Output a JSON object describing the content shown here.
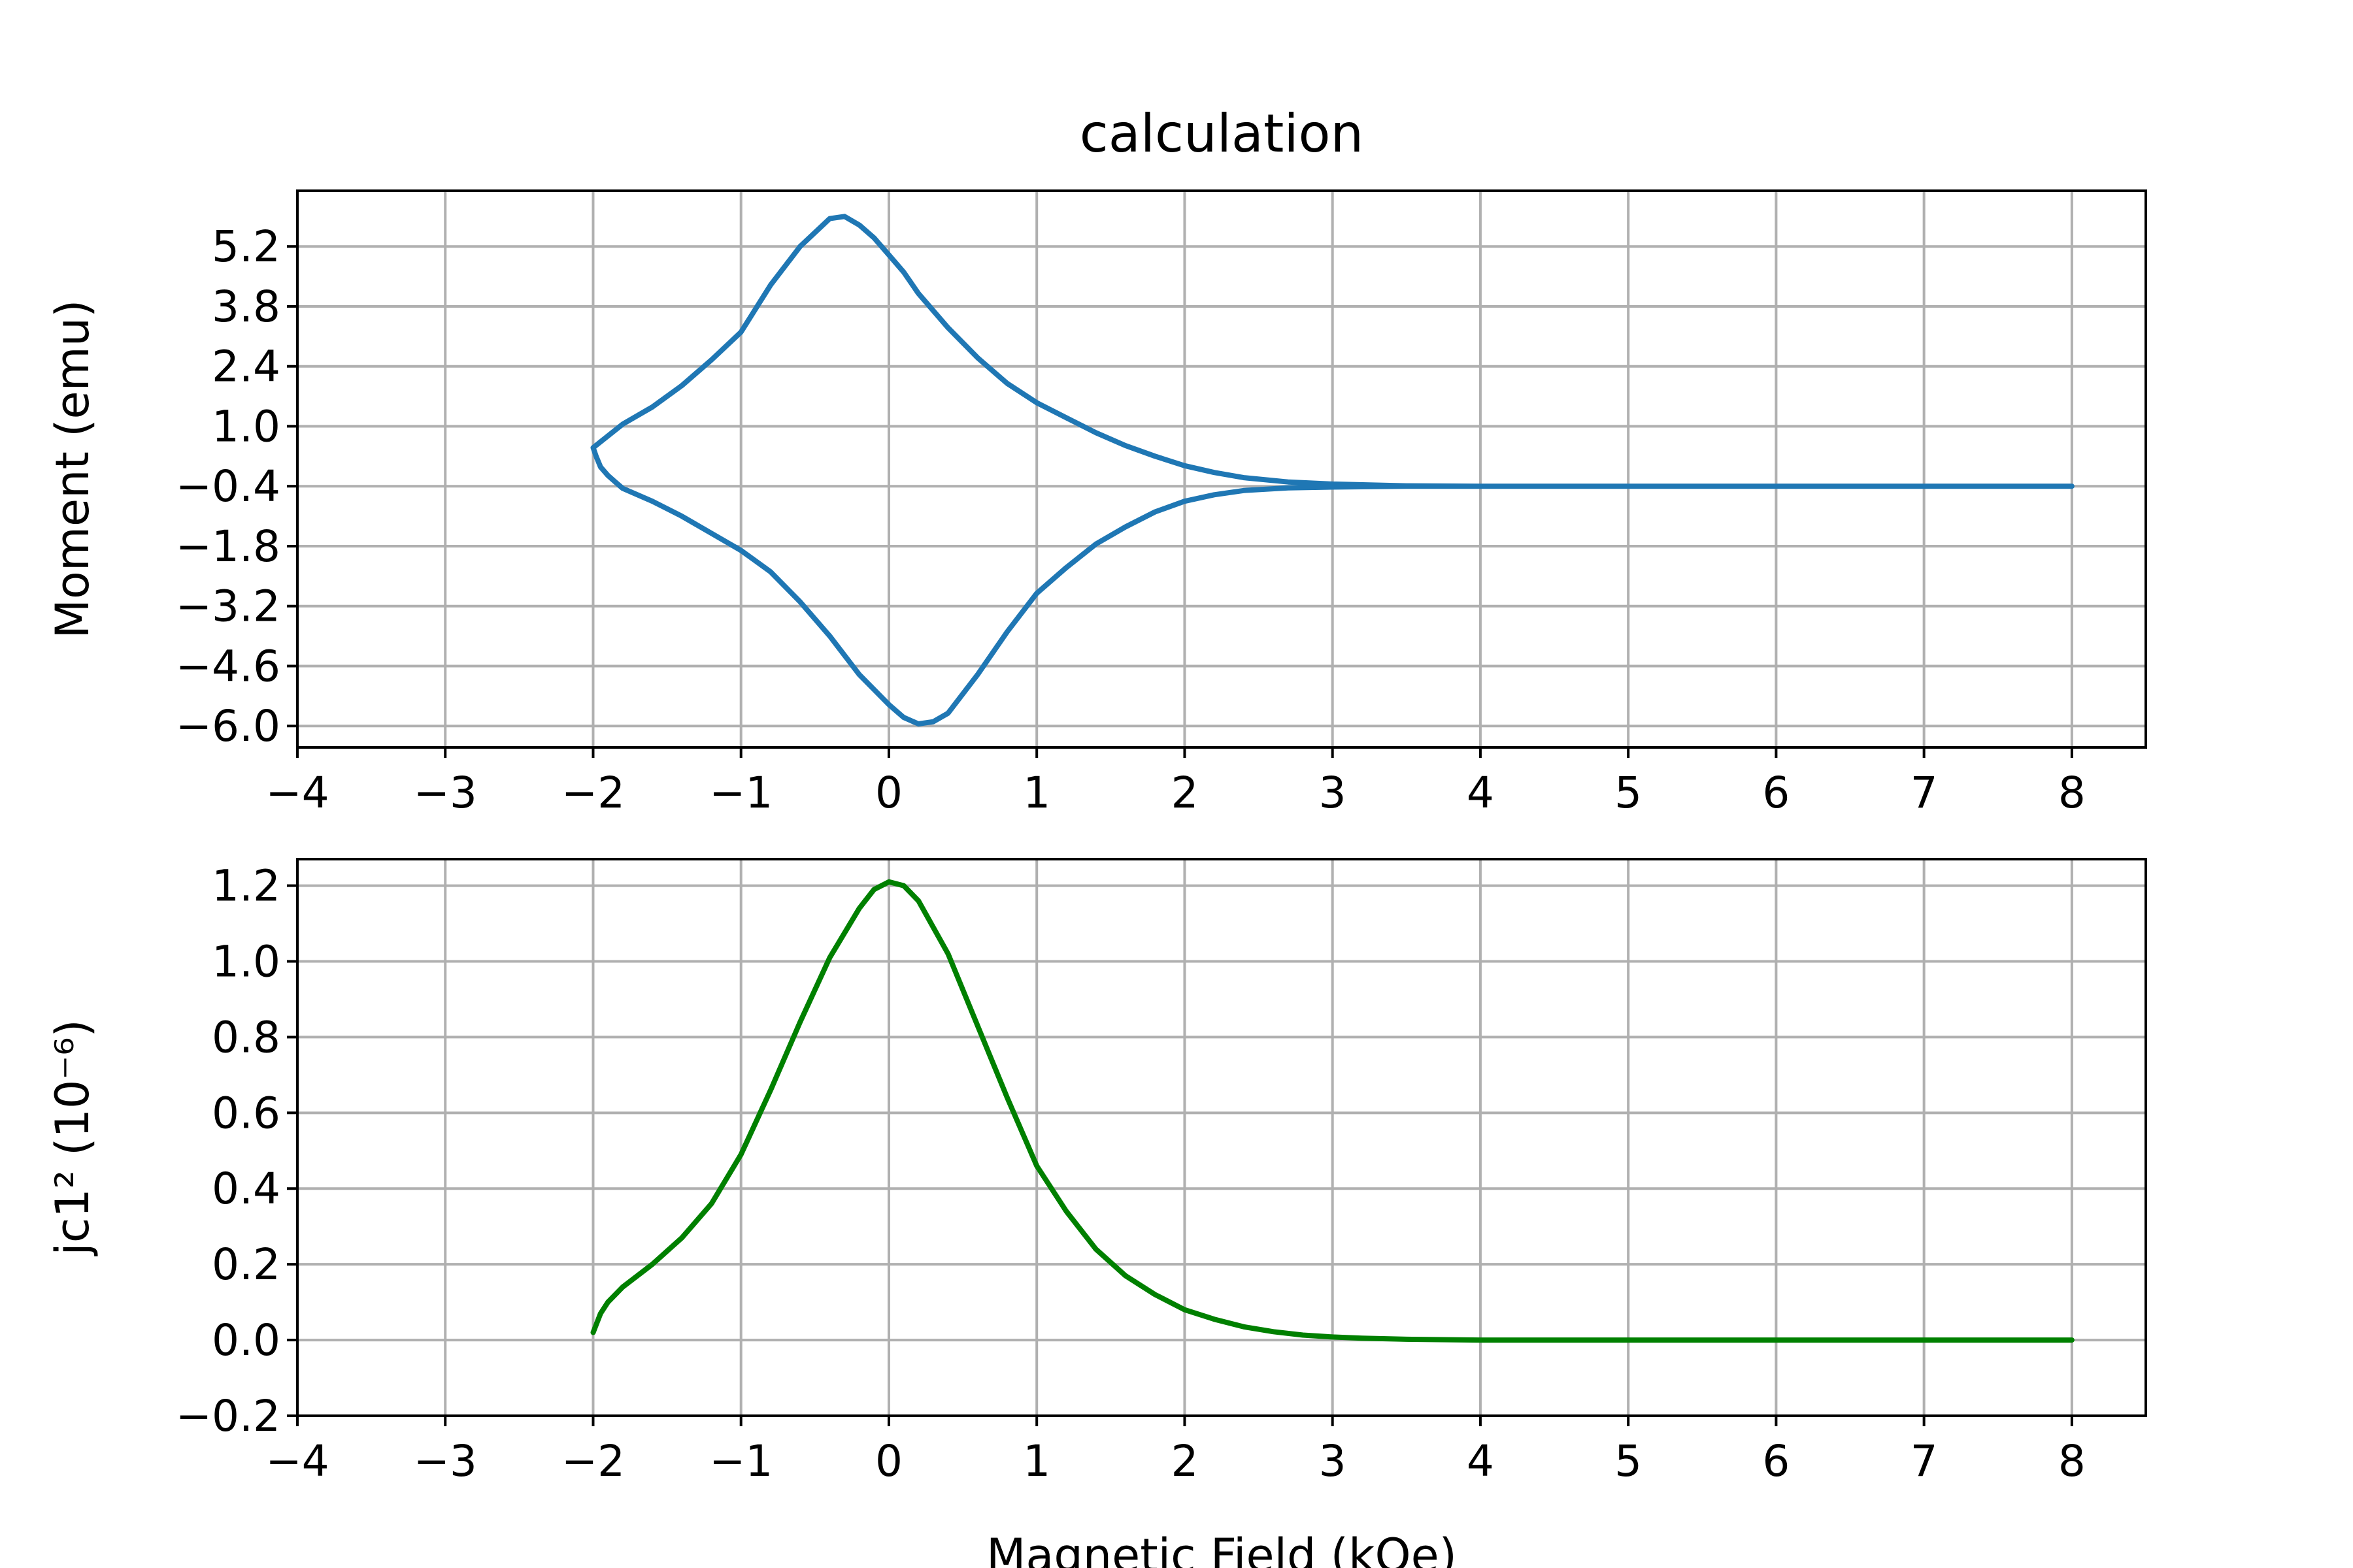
{
  "figure": {
    "title": "calculation",
    "xlabel": "Magnetic Field (kOe)"
  },
  "chart_data": [
    {
      "type": "line",
      "title": "calculation",
      "xlabel": "",
      "ylabel": "Moment (emu)",
      "xlim": [
        -4,
        8.5
      ],
      "ylim": [
        -6.5,
        6.5
      ],
      "xticks": [
        -4,
        -3,
        -2,
        -1,
        0,
        1,
        2,
        3,
        4,
        5,
        6,
        7,
        8
      ],
      "xtick_labels": [
        "−4",
        "−3",
        "−2",
        "−1",
        "0",
        "1",
        "2",
        "3",
        "4",
        "5",
        "6",
        "7",
        "8"
      ],
      "yticks": [
        5.2,
        3.8,
        2.4,
        1.0,
        -0.4,
        -1.8,
        -3.2,
        -4.6,
        -6.0
      ],
      "ytick_labels": [
        "5.2",
        "3.8",
        "2.4",
        "1.0",
        "−0.4",
        "−1.8",
        "−3.2",
        "−4.6",
        "−6.0"
      ],
      "grid": true,
      "series": [
        {
          "color": "#1f77b4",
          "x": [
            8.0,
            6.0,
            4.0,
            3.5,
            3.0,
            2.7,
            2.4,
            2.2,
            2.0,
            1.8,
            1.6,
            1.4,
            1.2,
            1.0,
            0.8,
            0.6,
            0.4,
            0.2,
            0.1,
            0.0,
            -0.1,
            -0.2,
            -0.3,
            -0.4,
            -0.6,
            -0.8,
            -1.0,
            -1.2,
            -1.4,
            -1.6,
            -1.8,
            -2.0,
            -1.98,
            -1.95,
            -1.9,
            -1.85,
            -1.8,
            -1.6,
            -1.4,
            -1.2,
            -1.0,
            -0.8,
            -0.6,
            -0.4,
            -0.2,
            0.0,
            0.1,
            0.2,
            0.3,
            0.4,
            0.6,
            0.8,
            1.0,
            1.2,
            1.4,
            1.6,
            1.8,
            2.0,
            2.2,
            2.4,
            2.7,
            3.0,
            3.5,
            4.0,
            6.0,
            8.0
          ],
          "y": [
            -0.4,
            -0.4,
            -0.4,
            -0.39,
            -0.35,
            -0.3,
            -0.2,
            -0.08,
            0.08,
            0.3,
            0.55,
            0.85,
            1.2,
            1.55,
            2.0,
            2.6,
            3.3,
            4.1,
            4.6,
            5.0,
            5.4,
            5.7,
            5.9,
            5.85,
            5.2,
            4.3,
            3.2,
            2.55,
            1.95,
            1.45,
            1.05,
            0.5,
            0.3,
            0.05,
            -0.15,
            -0.3,
            -0.45,
            -0.75,
            -1.1,
            -1.5,
            -1.9,
            -2.4,
            -3.1,
            -3.9,
            -4.8,
            -5.5,
            -5.8,
            -5.95,
            -5.9,
            -5.7,
            -4.8,
            -3.8,
            -2.9,
            -2.3,
            -1.75,
            -1.35,
            -1.0,
            -0.75,
            -0.6,
            -0.5,
            -0.44,
            -0.42,
            -0.4,
            -0.4,
            -0.4,
            -0.4
          ]
        }
      ]
    },
    {
      "type": "line",
      "title": "",
      "xlabel": "Magnetic Field (kOe)",
      "ylabel": "jc1² (10⁻⁶)",
      "xlim": [
        -4,
        8.5
      ],
      "ylim": [
        -0.2,
        1.27
      ],
      "xticks": [
        -4,
        -3,
        -2,
        -1,
        0,
        1,
        2,
        3,
        4,
        5,
        6,
        7,
        8
      ],
      "xtick_labels": [
        "−4",
        "−3",
        "−2",
        "−1",
        "0",
        "1",
        "2",
        "3",
        "4",
        "5",
        "6",
        "7",
        "8"
      ],
      "yticks": [
        -0.2,
        0.0,
        0.2,
        0.4,
        0.6,
        0.8,
        1.0,
        1.2
      ],
      "ytick_labels": [
        "−0.2",
        "0.0",
        "0.2",
        "0.4",
        "0.6",
        "0.8",
        "1.0",
        "1.2"
      ],
      "grid": true,
      "series": [
        {
          "color": "#008000",
          "x": [
            -2.0,
            -1.95,
            -1.9,
            -1.8,
            -1.6,
            -1.4,
            -1.2,
            -1.0,
            -0.8,
            -0.6,
            -0.4,
            -0.2,
            -0.1,
            0.0,
            0.1,
            0.2,
            0.4,
            0.6,
            0.8,
            1.0,
            1.2,
            1.4,
            1.6,
            1.8,
            2.0,
            2.2,
            2.4,
            2.6,
            2.8,
            3.0,
            3.2,
            3.5,
            4.0,
            5.0,
            6.0,
            7.0,
            8.0
          ],
          "y": [
            0.02,
            0.07,
            0.1,
            0.14,
            0.2,
            0.27,
            0.36,
            0.49,
            0.66,
            0.84,
            1.01,
            1.14,
            1.19,
            1.21,
            1.2,
            1.16,
            1.02,
            0.83,
            0.64,
            0.46,
            0.34,
            0.24,
            0.17,
            0.12,
            0.08,
            0.055,
            0.035,
            0.022,
            0.013,
            0.008,
            0.005,
            0.002,
            0.0,
            0.0,
            0.0,
            0.0,
            0.0
          ]
        }
      ]
    }
  ]
}
